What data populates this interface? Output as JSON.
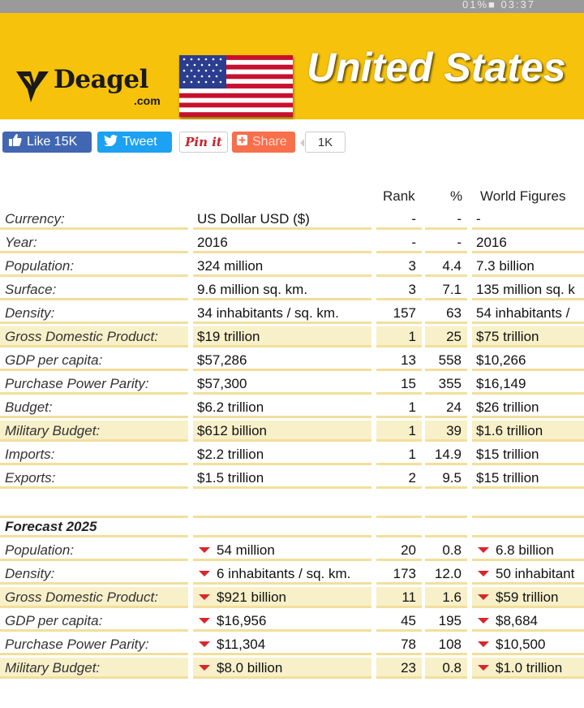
{
  "status_bar": {
    "text": "01%■ 03:37"
  },
  "header": {
    "logo_word": "Deagel",
    "logo_domain": ".com",
    "country": "United States",
    "colors": {
      "background": "#f6c20c",
      "title": "#ffffff"
    }
  },
  "social": {
    "like_label": "Like 15K",
    "tweet_label": "Tweet",
    "pin_label": "Pin it",
    "share_label": "Share",
    "share_count": "1K"
  },
  "columns": {
    "rank": "Rank",
    "pct": "%",
    "world": "World Figures"
  },
  "current": [
    {
      "label": "Currency:",
      "value": "US Dollar USD ($)",
      "rank": "-",
      "pct": "-",
      "world": "-",
      "hl": false
    },
    {
      "label": "Year:",
      "value": "2016",
      "rank": "-",
      "pct": "-",
      "world": "2016",
      "hl": false
    },
    {
      "label": "Population:",
      "value": "324 million",
      "rank": "3",
      "pct": "4.4",
      "world": "7.3 billion",
      "hl": false
    },
    {
      "label": "Surface:",
      "value": "9.6 million sq. km.",
      "rank": "3",
      "pct": "7.1",
      "world": "135 million sq. k",
      "hl": false
    },
    {
      "label": "Density:",
      "value": "34 inhabitants / sq. km.",
      "rank": "157",
      "pct": "63",
      "world": "54 inhabitants /",
      "hl": false
    },
    {
      "label": "Gross Domestic Product:",
      "value": "$19 trillion",
      "rank": "1",
      "pct": "25",
      "world": "$75 trillion",
      "hl": true
    },
    {
      "label": "GDP per capita:",
      "value": "$57,286",
      "rank": "13",
      "pct": "558",
      "world": "$10,266",
      "hl": false
    },
    {
      "label": "Purchase Power Parity:",
      "value": "$57,300",
      "rank": "15",
      "pct": "355",
      "world": "$16,149",
      "hl": false
    },
    {
      "label": "Budget:",
      "value": "$6.2 trillion",
      "rank": "1",
      "pct": "24",
      "world": "$26 trillion",
      "hl": false
    },
    {
      "label": "Military Budget:",
      "value": "$612 billion",
      "rank": "1",
      "pct": "39",
      "world": "$1.6 trillion",
      "hl": true
    },
    {
      "label": "Imports:",
      "value": "$2.2 trillion",
      "rank": "1",
      "pct": "14.9",
      "world": "$15 trillion",
      "hl": false
    },
    {
      "label": "Exports:",
      "value": "$1.5 trillion",
      "rank": "2",
      "pct": "9.5",
      "world": "$15 trillion",
      "hl": false
    }
  ],
  "forecast": {
    "title": "Forecast 2025",
    "rows": [
      {
        "label": "Population:",
        "value": "54 million",
        "rank": "20",
        "pct": "0.8",
        "world": "6.8 billion",
        "hl": false
      },
      {
        "label": "Density:",
        "value": "6 inhabitants / sq. km.",
        "rank": "173",
        "pct": "12.0",
        "world": "50 inhabitant",
        "hl": false
      },
      {
        "label": "Gross Domestic Product:",
        "value": "$921 billion",
        "rank": "11",
        "pct": "1.6",
        "world": "$59 trillion",
        "hl": true
      },
      {
        "label": "GDP per capita:",
        "value": "$16,956",
        "rank": "45",
        "pct": "195",
        "world": "$8,684",
        "hl": false
      },
      {
        "label": "Purchase Power Parity:",
        "value": "$11,304",
        "rank": "78",
        "pct": "108",
        "world": "$10,500",
        "hl": false
      },
      {
        "label": "Military Budget:",
        "value": "$8.0 billion",
        "rank": "23",
        "pct": "0.8",
        "world": "$1.0 trillion",
        "hl": true
      }
    ]
  }
}
